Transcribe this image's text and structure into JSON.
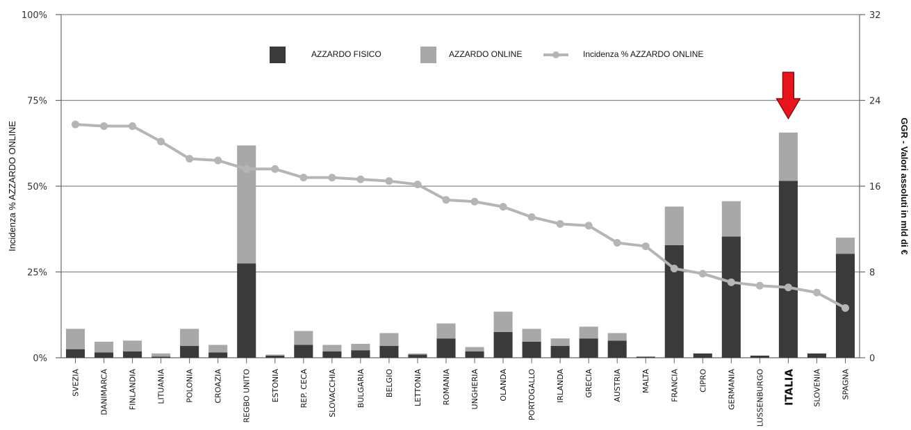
{
  "chart_data": {
    "type": "bar",
    "stacked": true,
    "categories": [
      "SVEZIA",
      "DANIMARCA",
      "FINLANDIA",
      "LITUANIA",
      "POLONIA",
      "CROAZIA",
      "REGBO UNITO",
      "ESTONIA",
      "REP. CECA",
      "SLOVACCHIA",
      "BULGARIA",
      "BELGIO",
      "LETTONIA",
      "ROMANIA",
      "UNGHERIA",
      "OLANDA",
      "PORTOGALLO",
      "IRLANDA",
      "GRECIA",
      "AUSTRIA",
      "MALTA",
      "FRANCIA",
      "CIPRO",
      "GERMANIA",
      "LUSSENBURGO",
      "ITALIA",
      "SLOVENIA",
      "SPAGNA"
    ],
    "highlight_category": "ITALIA",
    "highlight_color": "#e8141c",
    "series": [
      {
        "name": "AZZARDO FISICO",
        "axis": "right",
        "color": "#3a3a3a",
        "values": [
          0.8,
          0.5,
          0.6,
          0.1,
          1.1,
          0.5,
          8.8,
          0.2,
          1.2,
          0.6,
          0.7,
          1.1,
          0.3,
          1.8,
          0.6,
          2.4,
          1.5,
          1.1,
          1.8,
          1.6,
          0.1,
          10.5,
          0.4,
          11.3,
          0.2,
          16.5,
          0.4,
          9.7
        ]
      },
      {
        "name": "AZZARDO ONLINE",
        "axis": "right",
        "color": "#a8a8a8",
        "values": [
          1.9,
          1.0,
          1.0,
          0.3,
          1.6,
          0.7,
          11.0,
          0.1,
          1.3,
          0.6,
          0.6,
          1.2,
          0.1,
          1.4,
          0.4,
          1.9,
          1.2,
          0.7,
          1.1,
          0.7,
          0.0,
          3.6,
          0.0,
          3.3,
          0.0,
          4.5,
          0.0,
          1.5
        ]
      },
      {
        "name": "Incidenza % AZZARDO ONLINE",
        "axis": "left",
        "type": "line",
        "color": "#b5b5b5",
        "values": [
          68,
          67.5,
          67.5,
          63,
          58,
          57.5,
          55,
          55,
          52.5,
          52.5,
          52,
          51.5,
          50.5,
          46,
          45.5,
          44,
          41,
          39,
          38.5,
          33.5,
          32.5,
          26,
          24.5,
          22,
          21,
          20.5,
          19,
          14.5
        ]
      }
    ],
    "y_left": {
      "label": "Incidenza % AZZARDO ONLINE",
      "ticks": [
        "0%",
        "25%",
        "50%",
        "75%",
        "100%"
      ],
      "min": 0,
      "max": 100
    },
    "y_right": {
      "label": "GGR - Valori assoluti in mld di €",
      "ticks": [
        "0",
        "8",
        "16",
        "24",
        "32"
      ],
      "min": 0,
      "max": 32
    },
    "grid": true,
    "legend_position": "top"
  }
}
